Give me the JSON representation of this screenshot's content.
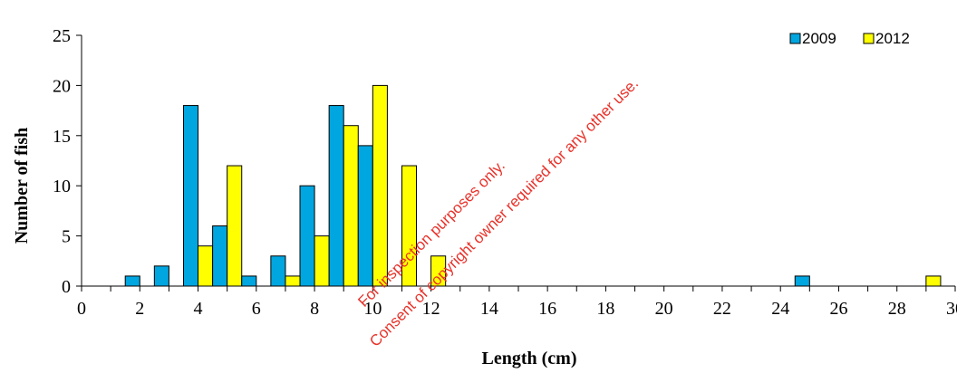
{
  "chart_data": {
    "type": "bar",
    "title": "",
    "xlabel": "Length (cm)",
    "ylabel": "Number of fish",
    "xlim": [
      0,
      30
    ],
    "ylim": [
      0,
      25
    ],
    "x_ticks": [
      0,
      2,
      4,
      6,
      8,
      10,
      12,
      14,
      16,
      18,
      20,
      22,
      24,
      26,
      28,
      30
    ],
    "y_ticks": [
      0,
      5,
      10,
      15,
      20,
      25
    ],
    "grid": false,
    "legend_position": "top-right",
    "x": [
      1,
      2,
      3,
      4,
      5,
      6,
      7,
      8,
      9,
      10,
      11,
      12,
      13,
      14,
      15,
      16,
      17,
      18,
      19,
      20,
      21,
      22,
      23,
      24,
      25,
      26,
      27,
      28,
      29
    ],
    "series": [
      {
        "name": "2009",
        "color": "#00a6e0",
        "values": [
          0,
          1,
          2,
          18,
          6,
          1,
          3,
          10,
          18,
          14,
          0,
          0,
          0,
          0,
          0,
          0,
          0,
          0,
          0,
          0,
          0,
          0,
          0,
          0,
          1,
          0,
          0,
          0,
          0
        ]
      },
      {
        "name": "2012",
        "color": "#ffff00",
        "values": [
          0,
          0,
          0,
          4,
          12,
          0,
          1,
          5,
          16,
          20,
          12,
          3,
          0,
          0,
          0,
          0,
          0,
          0,
          0,
          0,
          0,
          0,
          0,
          0,
          0,
          0,
          0,
          0,
          1
        ]
      }
    ]
  },
  "watermark": {
    "line1": "For inspection purposes only.",
    "line2": "Consent of copyright owner required for any other use."
  }
}
